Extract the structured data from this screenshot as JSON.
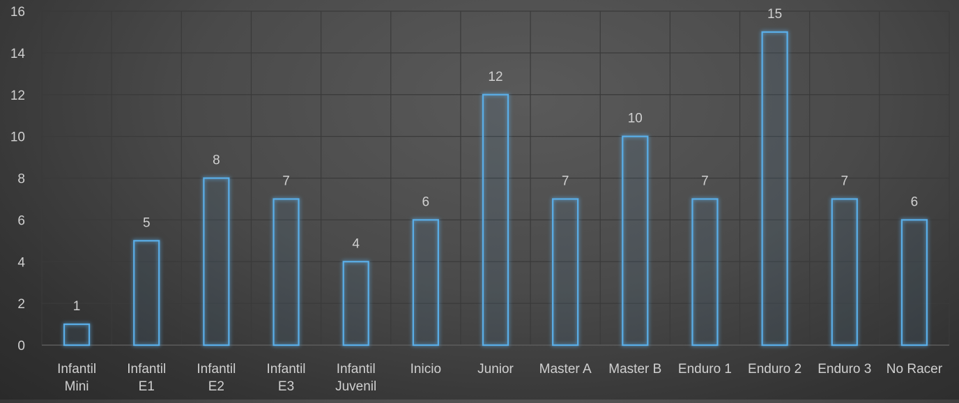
{
  "chart_data": {
    "type": "bar",
    "title": "",
    "xlabel": "",
    "ylabel": "",
    "categories": [
      [
        "Infantil",
        "Mini"
      ],
      [
        "Infantil",
        "E1"
      ],
      [
        "Infantil",
        "E2"
      ],
      [
        "Infantil",
        "E3"
      ],
      [
        "Infantil",
        "Juvenil"
      ],
      [
        "Inicio"
      ],
      [
        "Junior"
      ],
      [
        "Master A"
      ],
      [
        "Master B"
      ],
      [
        "Enduro 1"
      ],
      [
        "Enduro 2"
      ],
      [
        "Enduro 3"
      ],
      [
        "No Racer"
      ]
    ],
    "values": [
      1,
      5,
      8,
      7,
      4,
      6,
      12,
      7,
      10,
      7,
      15,
      7,
      6
    ],
    "ylim": [
      0,
      16
    ],
    "yticks": [
      0,
      2,
      4,
      6,
      8,
      10,
      12,
      14,
      16
    ],
    "grid": true,
    "data_labels": true,
    "colors": {
      "bar_stroke": "#5aaee8",
      "bar_glow": "#3a8fd6",
      "text": "#d0d0d0",
      "grid": "#3a3a3a",
      "axis": "#5c5c5c"
    }
  }
}
